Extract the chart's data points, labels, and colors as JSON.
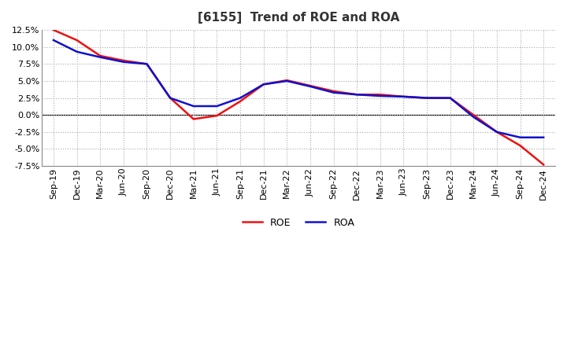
{
  "title": "[6155]  Trend of ROE and ROA",
  "x_labels": [
    "Sep-19",
    "Dec-19",
    "Mar-20",
    "Jun-20",
    "Sep-20",
    "Dec-20",
    "Mar-21",
    "Jun-21",
    "Sep-21",
    "Dec-21",
    "Mar-22",
    "Jun-22",
    "Sep-22",
    "Dec-22",
    "Mar-23",
    "Jun-23",
    "Sep-23",
    "Dec-23",
    "Mar-24",
    "Jun-24",
    "Sep-24",
    "Dec-24"
  ],
  "roe": [
    12.5,
    11.0,
    8.7,
    8.0,
    7.5,
    2.5,
    -0.6,
    -0.1,
    2.0,
    4.5,
    5.1,
    4.3,
    3.5,
    3.0,
    3.0,
    2.7,
    2.5,
    2.5,
    0.0,
    -2.5,
    -4.5,
    -7.3
  ],
  "roa": [
    11.0,
    9.3,
    8.5,
    7.8,
    7.5,
    2.5,
    1.3,
    1.3,
    2.5,
    4.5,
    5.0,
    4.2,
    3.3,
    3.0,
    2.8,
    2.7,
    2.5,
    2.5,
    -0.3,
    -2.5,
    -3.3,
    -3.3
  ],
  "roe_color": "#ee1111",
  "roa_color": "#1111cc",
  "background_color": "#ffffff",
  "plot_bg_color": "#ffffff",
  "grid_color": "#aaaaaa",
  "ylim": [
    -7.5,
    12.5
  ],
  "yticks": [
    -7.5,
    -5.0,
    -2.5,
    0.0,
    2.5,
    5.0,
    7.5,
    10.0,
    12.5
  ],
  "title_fontsize": 11,
  "legend_fontsize": 9,
  "axis_fontsize": 8,
  "line_width": 1.8
}
